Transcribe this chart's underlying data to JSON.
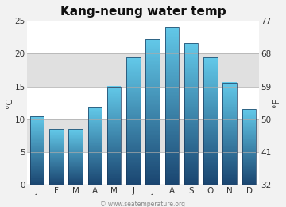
{
  "title": "Kang-neung water temp",
  "months": [
    "J",
    "F",
    "M",
    "A",
    "M",
    "J",
    "J",
    "A",
    "S",
    "O",
    "N",
    "D"
  ],
  "values_c": [
    10.5,
    8.5,
    8.5,
    11.8,
    15.0,
    19.4,
    22.2,
    24.0,
    21.6,
    19.4,
    15.6,
    11.5
  ],
  "ylabel_left": "°C",
  "ylabel_right": "°F",
  "yticks_left": [
    0,
    5,
    10,
    15,
    20,
    25
  ],
  "yticks_right": [
    32,
    41,
    50,
    59,
    68,
    77
  ],
  "ylim": [
    0,
    25
  ],
  "bar_color_top": "#62c8e8",
  "bar_color_bottom": "#1a4570",
  "bg_color": "#f2f2f2",
  "plot_bg_light": "#f0f0f0",
  "plot_bg_dark": "#e0e0e0",
  "bar_edge_color": "#1a3a5c",
  "title_fontsize": 11,
  "axis_fontsize": 8,
  "tick_fontsize": 7.5,
  "watermark": "© www.seatemperature.org"
}
